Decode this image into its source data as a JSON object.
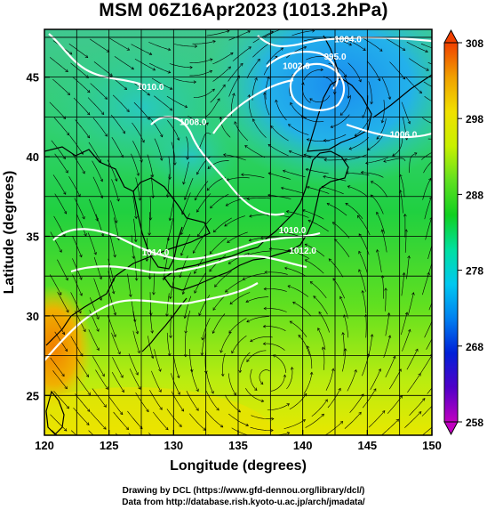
{
  "title": "MSM 06Z16Apr2023 (1013.2hPa)",
  "map": {
    "x_axis": {
      "label": "Longitude (degrees)",
      "range": [
        120,
        150
      ],
      "ticks": [
        {
          "value": 120,
          "label": "120"
        },
        {
          "value": 125,
          "label": "125"
        },
        {
          "value": 130,
          "label": "130"
        },
        {
          "value": 135,
          "label": "135"
        },
        {
          "value": 140,
          "label": "140"
        },
        {
          "value": 145,
          "label": "145"
        },
        {
          "value": 150,
          "label": "150"
        }
      ]
    },
    "y_axis": {
      "label": "Latitude  (degrees)",
      "range": [
        22.5,
        48
      ],
      "ticks": [
        {
          "value": 25,
          "label": "25"
        },
        {
          "value": 30,
          "label": "30"
        },
        {
          "value": 35,
          "label": "35"
        },
        {
          "value": 40,
          "label": "40"
        },
        {
          "value": 45,
          "label": "45"
        }
      ]
    },
    "grid": true,
    "contour_labels": [
      {
        "lon": 143.5,
        "lat": 47.2,
        "text": "1004.0"
      },
      {
        "lon": 142.5,
        "lat": 46.1,
        "text": "995.0"
      },
      {
        "lon": 139.5,
        "lat": 45.5,
        "text": "1002.0"
      },
      {
        "lon": 128.2,
        "lat": 44.2,
        "text": "1010.0"
      },
      {
        "lon": 131.5,
        "lat": 42.0,
        "text": "1008.0"
      },
      {
        "lon": 139.2,
        "lat": 35.2,
        "text": "1010.0"
      },
      {
        "lon": 140.0,
        "lat": 33.9,
        "text": "1012.0"
      },
      {
        "lon": 128.6,
        "lat": 33.8,
        "text": "1014.0"
      },
      {
        "lon": 147.8,
        "lat": 41.2,
        "text": "1006.0"
      }
    ]
  },
  "colorbar": {
    "min": 258,
    "max": 308,
    "ticks": [
      {
        "value": 308,
        "label": "308"
      },
      {
        "value": 298,
        "label": "298"
      },
      {
        "value": 288,
        "label": "288"
      },
      {
        "value": 278,
        "label": "278"
      },
      {
        "value": 268,
        "label": "268"
      },
      {
        "value": 258,
        "label": "258"
      }
    ],
    "colors": [
      "#c000c0",
      "#5000c8",
      "#0020d8",
      "#0080f0",
      "#00c8f0",
      "#00e0a0",
      "#10d020",
      "#60e020",
      "#c8f000",
      "#f0e000",
      "#f0a000",
      "#f04000"
    ]
  },
  "credits": {
    "line1": "Drawing by DCL (https://www.gfd-dennou.org/library/dcl/)",
    "line2": "Data from http://database.rish.kyoto-u.ac.jp/arch/jmadata/"
  }
}
